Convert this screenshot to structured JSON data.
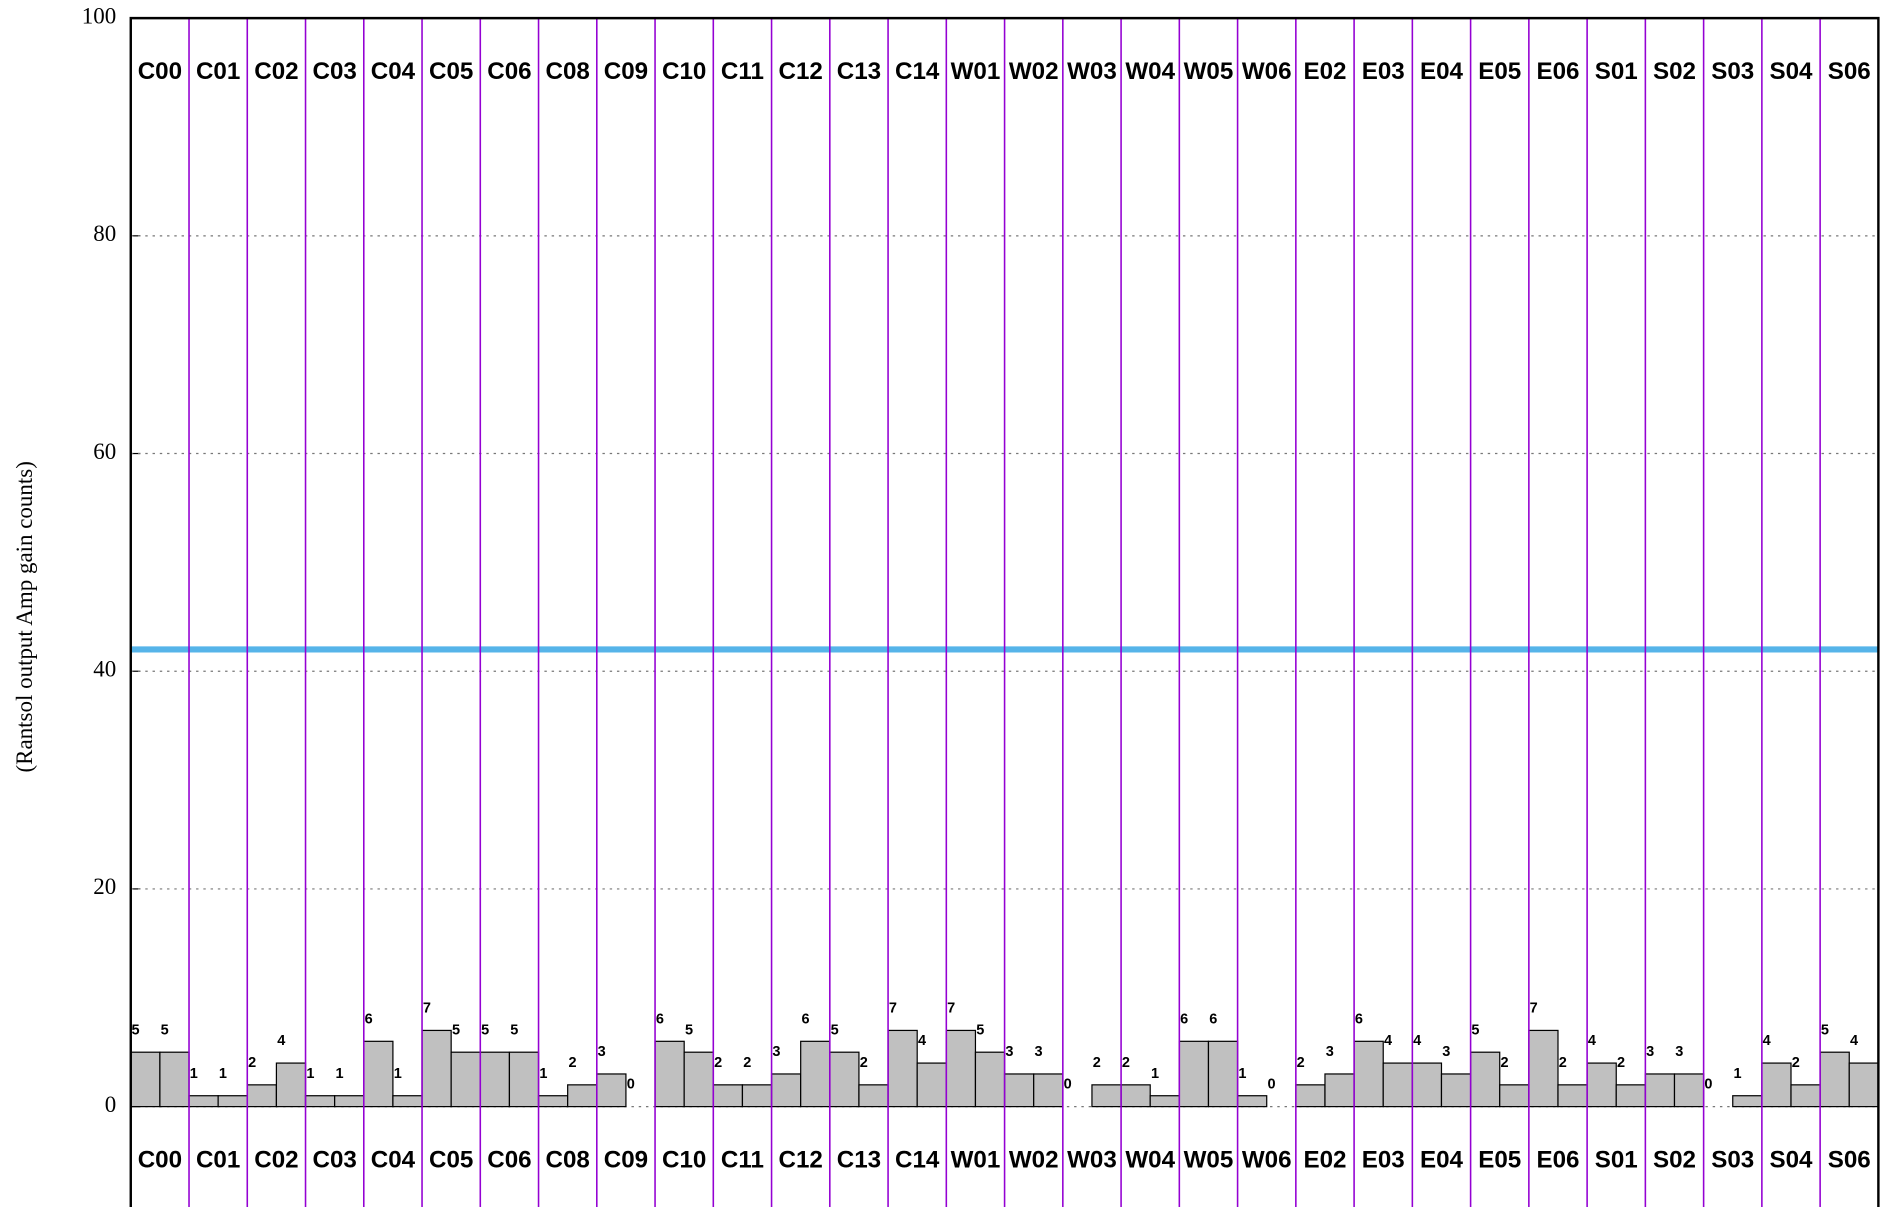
{
  "chart_data": {
    "type": "bar",
    "ylabel": "(Rantsol output Amp gain counts)",
    "groups": [
      "C00",
      "C01",
      "C02",
      "C03",
      "C04",
      "C05",
      "C06",
      "C08",
      "C09",
      "C10",
      "C11",
      "C12",
      "C13",
      "C14",
      "W01",
      "W02",
      "W03",
      "W04",
      "W05",
      "W06",
      "E02",
      "E03",
      "E04",
      "E05",
      "E06",
      "S01",
      "S02",
      "S03",
      "S04",
      "S06"
    ],
    "values": [
      5,
      5,
      1,
      1,
      2,
      4,
      1,
      1,
      6,
      1,
      7,
      5,
      5,
      5,
      1,
      2,
      3,
      0,
      6,
      5,
      2,
      2,
      3,
      6,
      5,
      2,
      7,
      4,
      7,
      5,
      3,
      3,
      0,
      2,
      2,
      1,
      6,
      6,
      1,
      0,
      2,
      3,
      6,
      4,
      4,
      3,
      5,
      2,
      7,
      2,
      4,
      2,
      3,
      3,
      0,
      1,
      4,
      2,
      5,
      4
    ],
    "color": "#c0c0c0",
    "separator_color": "#9400d3",
    "hline": 42,
    "hline_color": "#56b4e9",
    "ylim": [
      0,
      100
    ],
    "yticks": [
      0,
      20,
      40,
      60,
      80,
      100
    ],
    "grid": true
  }
}
